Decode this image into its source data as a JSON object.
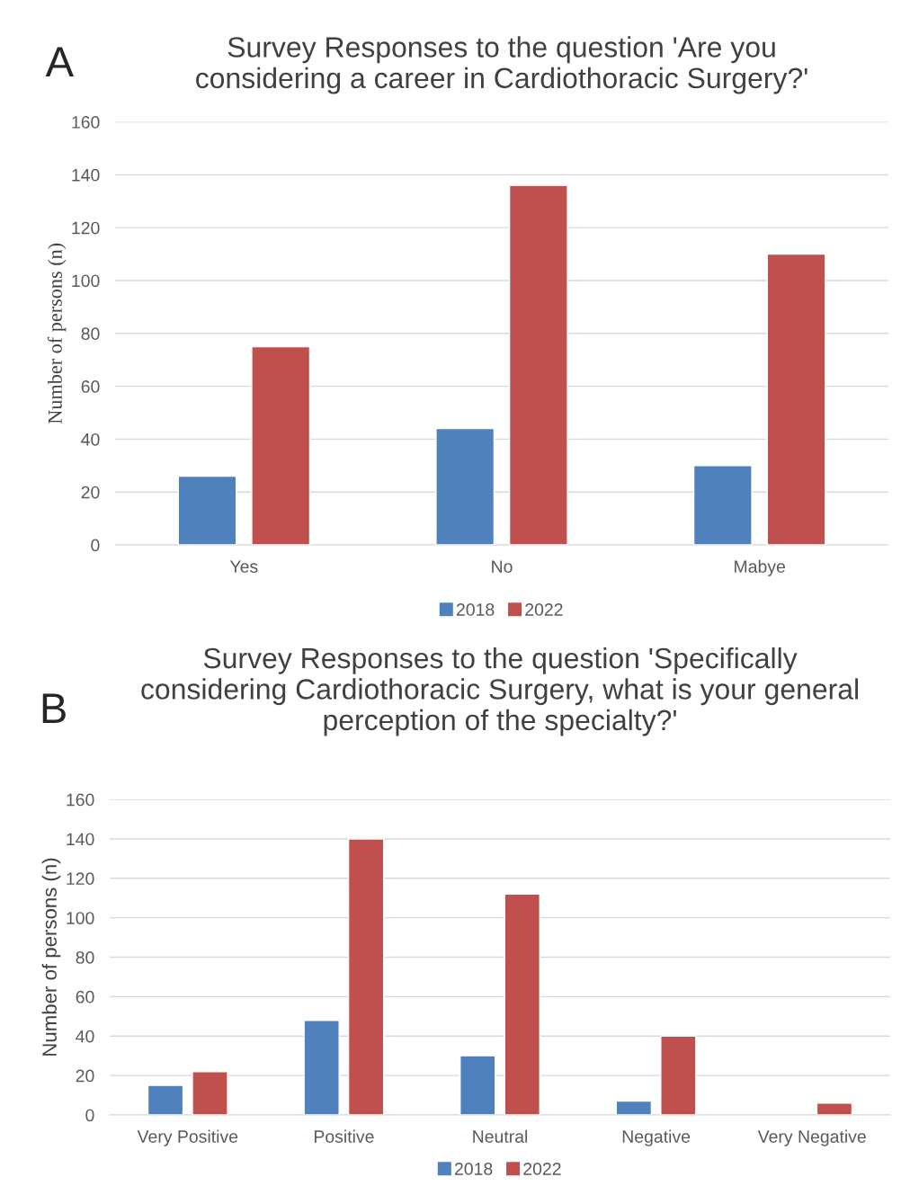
{
  "chart_data": [
    {
      "type": "bar",
      "title": "Survey Responses to the question 'Are you\nconsidering a career in Cardiothoracic Surgery?'",
      "ylabel": "Number of persons (n)",
      "annotations": [
        "A"
      ],
      "categories": [
        "Yes",
        "No",
        "Mabye"
      ],
      "series": [
        {
          "name": "2018",
          "color": "#4f81bd",
          "values": [
            26,
            44,
            30
          ]
        },
        {
          "name": "2022",
          "color": "#c0504d",
          "values": [
            75,
            136,
            110
          ]
        }
      ],
      "ylim": [
        0,
        160
      ],
      "yticks": [
        0,
        20,
        40,
        60,
        80,
        100,
        120,
        140,
        160
      ],
      "grid": "y",
      "legend": "bottom"
    },
    {
      "type": "bar",
      "title": "Survey Responses to the question 'Specifically\nconsidering Cardiothoracic Surgery, what is your general\nperception of the specialty?'",
      "ylabel": "Number of persons (n)",
      "annotations": [
        "B"
      ],
      "categories": [
        "Very Positive",
        "Positive",
        "Neutral",
        "Negative",
        "Very Negative"
      ],
      "series": [
        {
          "name": "2018",
          "color": "#4f81bd",
          "values": [
            15,
            48,
            30,
            7,
            null
          ]
        },
        {
          "name": "2022",
          "color": "#c0504d",
          "values": [
            22,
            140,
            112,
            40,
            6
          ]
        }
      ],
      "ylim": [
        0,
        160
      ],
      "yticks": [
        0,
        20,
        40,
        60,
        80,
        100,
        120,
        140,
        160
      ],
      "grid": "y",
      "legend": "bottom"
    }
  ]
}
